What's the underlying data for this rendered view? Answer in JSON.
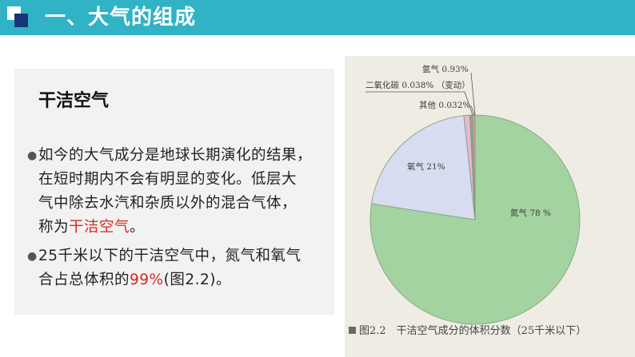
{
  "header": {
    "title": "一、大气的组成",
    "bar_color": "#2fb3c5"
  },
  "content": {
    "subheading": "干洁空气",
    "para1_lines": [
      "如今的大气成分是地球长期演化的结果，",
      "在短时期内不会有明显的变化。低层大",
      "气中除去水汽和杂质以外的混合气体，"
    ],
    "para1_last_prefix": "称为",
    "para1_highlight": "干洁空气",
    "para1_last_suffix": "。",
    "para2_line1": "25千米以下的干洁空气中，氮气和氧气",
    "para2_prefix": "合占总体积的",
    "para2_highlight": "99%",
    "para2_suffix": "(图2.2)。",
    "bullet_glyph": "●",
    "highlight_color": "#d9281f"
  },
  "figure": {
    "label_nitrogen": "氮气 78 %",
    "label_oxygen": "氧气 21%",
    "label_argon": "氩气 0.93%",
    "label_co2": "二氧化碳 0.038% （变动）",
    "label_other": "其他 0.032%",
    "caption": "图2.2　干洁空气成分的体积分数（25千米以下）"
  },
  "chart_data": {
    "type": "pie",
    "title": "图2.2　干洁空气成分的体积分数（25千米以下）",
    "categories": [
      "氮气",
      "氧气",
      "氩气",
      "二氧化碳",
      "其他"
    ],
    "values": [
      78,
      21,
      0.93,
      0.038,
      0.032
    ],
    "colors": [
      "#a3d3a0",
      "#d8dcf0",
      "#e7b8cf",
      "#9b9b9b",
      "#d99"
    ]
  }
}
